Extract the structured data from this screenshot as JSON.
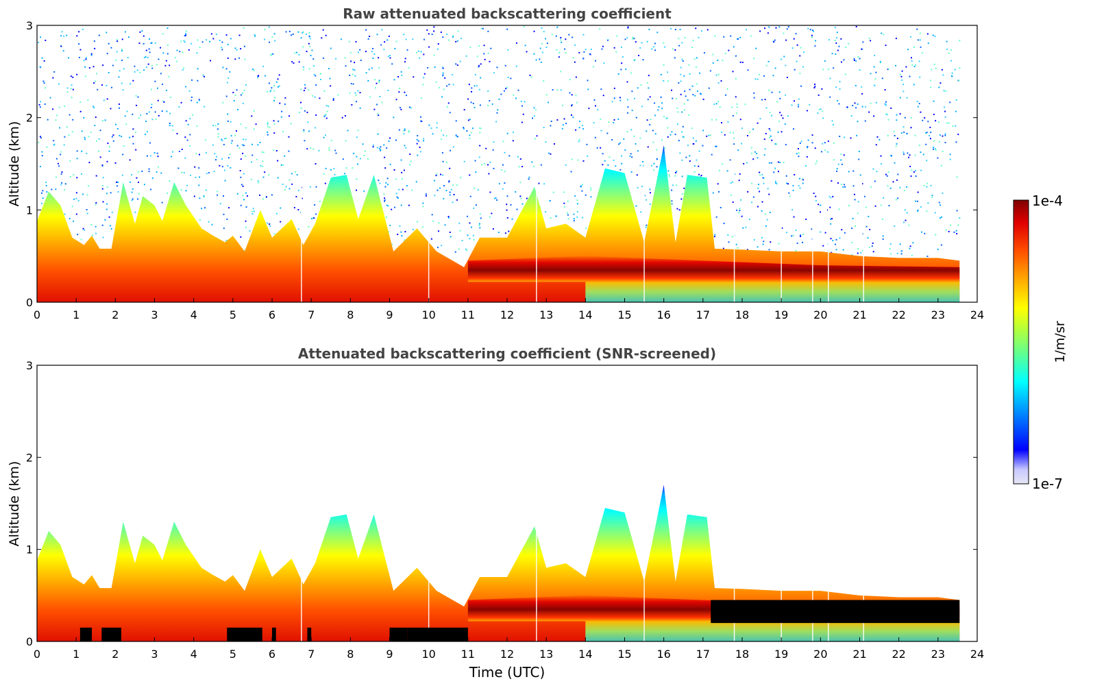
{
  "chart_data": [
    {
      "type": "heatmap",
      "title": "Raw attenuated backscattering coefficient",
      "xlabel": "",
      "ylabel": "Altitude (km)",
      "xlim": [
        0,
        24
      ],
      "ylim": [
        0,
        3
      ],
      "xticks": [
        "0",
        "1",
        "2",
        "3",
        "4",
        "5",
        "6",
        "7",
        "8",
        "9",
        "10",
        "11",
        "12",
        "13",
        "14",
        "15",
        "16",
        "17",
        "18",
        "19",
        "20",
        "21",
        "22",
        "23",
        "24"
      ],
      "yticks": [
        "0",
        "1",
        "2",
        "3"
      ],
      "data_end_time": 23.55,
      "boundary_layer_top_km": [
        [
          0,
          0.88
        ],
        [
          0.3,
          1.2
        ],
        [
          0.6,
          1.05
        ],
        [
          0.9,
          0.7
        ],
        [
          1.2,
          0.62
        ],
        [
          1.4,
          0.72
        ],
        [
          1.6,
          0.58
        ],
        [
          1.9,
          0.58
        ],
        [
          2.2,
          1.3
        ],
        [
          2.5,
          0.85
        ],
        [
          2.7,
          1.15
        ],
        [
          3.0,
          1.05
        ],
        [
          3.2,
          0.88
        ],
        [
          3.5,
          1.3
        ],
        [
          3.8,
          1.05
        ],
        [
          4.2,
          0.8
        ],
        [
          4.5,
          0.72
        ],
        [
          4.8,
          0.65
        ],
        [
          5.0,
          0.72
        ],
        [
          5.3,
          0.55
        ],
        [
          5.7,
          1.0
        ],
        [
          6.0,
          0.7
        ],
        [
          6.5,
          0.9
        ],
        [
          6.8,
          0.62
        ],
        [
          7.1,
          0.85
        ],
        [
          7.5,
          1.35
        ],
        [
          7.9,
          1.38
        ],
        [
          8.2,
          0.9
        ],
        [
          8.6,
          1.38
        ],
        [
          9.1,
          0.55
        ],
        [
          9.7,
          0.8
        ],
        [
          10.2,
          0.55
        ],
        [
          10.9,
          0.38
        ],
        [
          11.3,
          0.7
        ],
        [
          12.0,
          0.7
        ],
        [
          12.7,
          1.25
        ],
        [
          13.0,
          0.8
        ],
        [
          13.5,
          0.85
        ],
        [
          14.0,
          0.7
        ],
        [
          14.5,
          1.45
        ],
        [
          15.0,
          1.4
        ],
        [
          15.5,
          0.65
        ],
        [
          16.0,
          1.7
        ],
        [
          16.3,
          0.65
        ],
        [
          16.6,
          1.38
        ],
        [
          17.1,
          1.35
        ],
        [
          17.3,
          0.58
        ],
        [
          18.0,
          0.57
        ],
        [
          19.0,
          0.55
        ],
        [
          20.0,
          0.55
        ],
        [
          21.0,
          0.5
        ],
        [
          22.0,
          0.48
        ],
        [
          23.0,
          0.48
        ],
        [
          23.55,
          0.45
        ]
      ],
      "dense_layer_top_km": [
        [
          11,
          0.45
        ],
        [
          14,
          0.5
        ],
        [
          17,
          0.45
        ],
        [
          20,
          0.4
        ],
        [
          23.55,
          0.38
        ]
      ],
      "noise_presence": "high above 1.5 km"
    },
    {
      "type": "heatmap",
      "title": "Attenuated backscattering coefficient (SNR-screened)",
      "xlabel": "Time (UTC)",
      "ylabel": "Altitude (km)",
      "xlim": [
        0,
        24
      ],
      "ylim": [
        0,
        3
      ],
      "xticks": [
        "0",
        "1",
        "2",
        "3",
        "4",
        "5",
        "6",
        "7",
        "8",
        "9",
        "10",
        "11",
        "12",
        "13",
        "14",
        "15",
        "16",
        "17",
        "18",
        "19",
        "20",
        "21",
        "22",
        "23",
        "24"
      ],
      "yticks": [
        "0",
        "1",
        "2",
        "3"
      ],
      "masked_regions_black": [
        [
          1.1,
          1.4
        ],
        [
          1.65,
          2.15
        ],
        [
          4.85,
          5.75
        ],
        [
          6.0,
          6.1
        ],
        [
          6.9,
          7.0
        ],
        [
          9.0,
          9.45
        ],
        [
          9.45,
          11.0
        ],
        [
          17.2,
          23.55
        ]
      ],
      "noise_presence": "screened"
    }
  ],
  "colorbar": {
    "label": "1/m/sr",
    "max_label": "1e-4",
    "min_label": "1e-7",
    "colormap": "jet",
    "colors": [
      "#e6e6f5",
      "#c8c8ff",
      "#0000ff",
      "#00aaff",
      "#00ffff",
      "#60ff90",
      "#b0ff40",
      "#ffff00",
      "#ffaa00",
      "#ff5000",
      "#e00000",
      "#800000"
    ]
  }
}
